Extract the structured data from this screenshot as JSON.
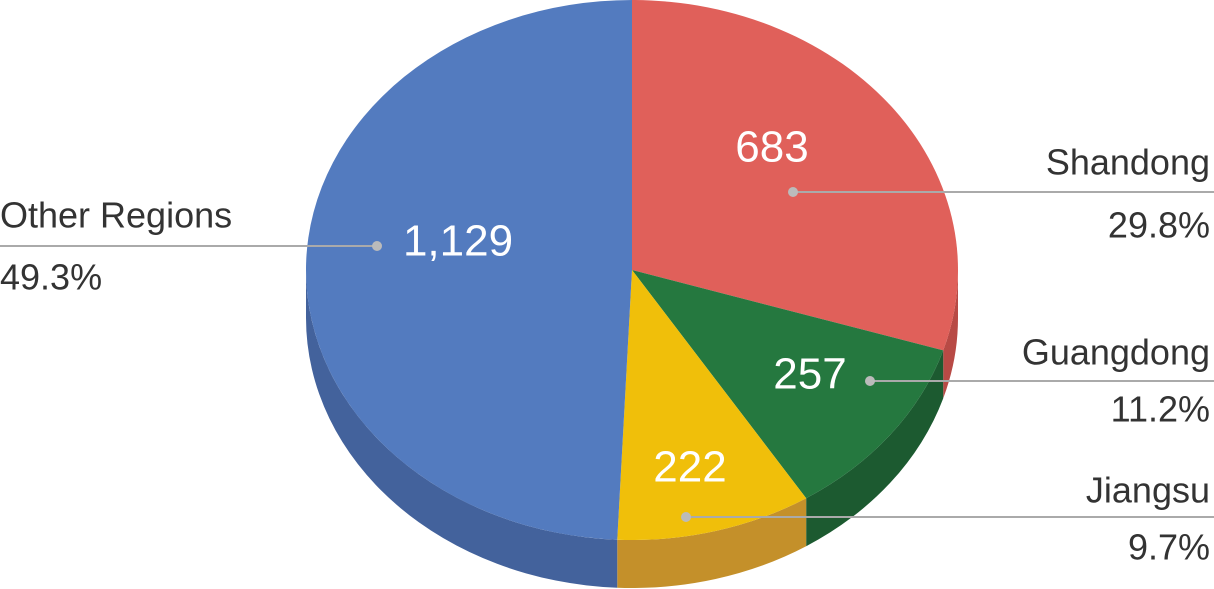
{
  "chart_data": {
    "type": "pie",
    "categories": [
      "Shandong",
      "Guangdong",
      "Jiangsu",
      "Other Regions"
    ],
    "values": [
      683,
      257,
      222,
      1129
    ],
    "value_labels": [
      "683",
      "257",
      "222",
      "1,129"
    ],
    "percent_labels": [
      "29.8%",
      "11.2%",
      "9.7%",
      "49.3%"
    ],
    "colors": [
      "#e0605a",
      "#25783f",
      "#f0bf0a",
      "#537bbf"
    ],
    "side_colors": [
      "#b84a45",
      "#1c5a30",
      "#c4902a",
      "#43629c"
    ]
  }
}
